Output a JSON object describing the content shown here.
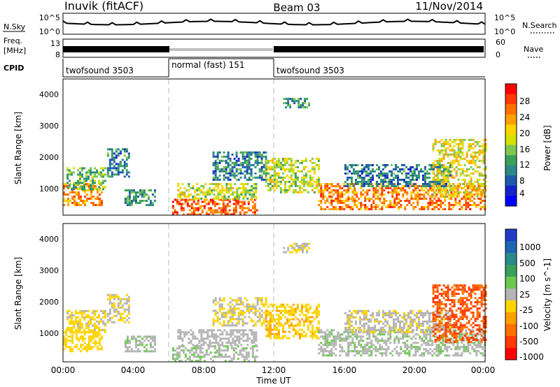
{
  "header": {
    "station": "Inuvik (fitACF)",
    "beam": "Beam 03",
    "date": "11/Nov/2014"
  },
  "strips": {
    "nsky_label": "N.Sky",
    "nsky_ticks": [
      "10^5",
      "10^0"
    ],
    "nsearch_label": "N.Search",
    "nsearch_ticks": [
      "10^5",
      "10^0"
    ],
    "freq_label_1": "Freq.",
    "freq_label_2": "[MHz]",
    "freq_ticks": [
      "13",
      "8"
    ],
    "nave_label": "Nave",
    "nave_ticks": [
      "60",
      "0"
    ],
    "cpid_label": "CPID",
    "cpid_segments": [
      {
        "label": "twofsound 3503",
        "start": 0,
        "end": 6
      },
      {
        "label": "normal (fast) 151",
        "start": 6,
        "end": 12
      },
      {
        "label": "twofsound 3503",
        "start": 12,
        "end": 24
      }
    ]
  },
  "power_colorbar": {
    "label": "Power [dB]",
    "ticks": [
      "28",
      "24",
      "20",
      "16",
      "12",
      "8",
      "4"
    ],
    "colors": [
      "#ff0000",
      "#ff3a00",
      "#ff7000",
      "#ffa000",
      "#ffd400",
      "#d6e000",
      "#7ec850",
      "#3aa05a",
      "#2a8a8a",
      "#1e5aaa",
      "#1424c8",
      "#0000ff"
    ]
  },
  "velocity_colorbar": {
    "label": "Velocity [m s^-1]",
    "ticks": [
      "1000",
      "500",
      "100",
      "25",
      "-25",
      "-100",
      "-500",
      "-1000"
    ],
    "colors": [
      "#1e3cc8",
      "#1e64b4",
      "#2a8a8a",
      "#3aa05a",
      "#6cc850",
      "#b4b4b4",
      "#ffd400",
      "#ffa000",
      "#ff7000",
      "#ff3a00",
      "#ff0000"
    ]
  },
  "chart_data": [
    {
      "type": "heatmap",
      "ylabel": "Slant Range [km]",
      "yticks": [
        "4000",
        "3000",
        "2000",
        "1000"
      ],
      "ylim": [
        180,
        4500
      ],
      "quantity": "Power [dB]",
      "regions": [
        {
          "t0": 0.0,
          "t1": 2.2,
          "r0": 500,
          "r1": 1200,
          "v": 22
        },
        {
          "t0": 0.2,
          "t1": 2.4,
          "r0": 1000,
          "r1": 1700,
          "v": 12
        },
        {
          "t0": 2.5,
          "t1": 3.8,
          "r0": 1400,
          "r1": 2300,
          "v": 8
        },
        {
          "t0": 3.5,
          "t1": 5.2,
          "r0": 500,
          "r1": 1000,
          "v": 10
        },
        {
          "t0": 6.2,
          "t1": 11.0,
          "r0": 200,
          "r1": 700,
          "v": 26
        },
        {
          "t0": 6.5,
          "t1": 11.0,
          "r0": 700,
          "r1": 1200,
          "v": 16
        },
        {
          "t0": 8.5,
          "t1": 11.5,
          "r0": 1300,
          "r1": 2200,
          "v": 8
        },
        {
          "t0": 11.5,
          "t1": 14.5,
          "r0": 900,
          "r1": 2000,
          "v": 16
        },
        {
          "t0": 12.5,
          "t1": 14.0,
          "r0": 3600,
          "r1": 3900,
          "v": 10
        },
        {
          "t0": 14.5,
          "t1": 24.0,
          "r0": 400,
          "r1": 1200,
          "v": 24
        },
        {
          "t0": 16.0,
          "t1": 22.0,
          "r0": 1100,
          "r1": 1800,
          "v": 8
        },
        {
          "t0": 21.0,
          "t1": 24.0,
          "r0": 800,
          "r1": 2600,
          "v": 18
        }
      ]
    },
    {
      "type": "heatmap",
      "ylabel": "Slant Range [km]",
      "yticks": [
        "4000",
        "3000",
        "2000",
        "1000"
      ],
      "ylim": [
        180,
        4500
      ],
      "xlabel": "Time UT",
      "xticks": [
        "00:00",
        "04:00",
        "08:00",
        "12:00",
        "16:00",
        "20:00",
        "00:00"
      ],
      "xlim": [
        0,
        24
      ],
      "quantity": "Velocity [m s^-1]",
      "regions": [
        {
          "t0": 0.0,
          "t1": 2.2,
          "r0": 500,
          "r1": 1200,
          "v": -200
        },
        {
          "t0": 0.2,
          "t1": 2.4,
          "r0": 1100,
          "r1": 1800,
          "v": -150
        },
        {
          "t0": 2.5,
          "t1": 3.8,
          "r0": 1400,
          "r1": 2300,
          "v": -100
        },
        {
          "t0": 3.5,
          "t1": 5.2,
          "r0": 500,
          "r1": 1000,
          "v": 50
        },
        {
          "t0": 6.2,
          "t1": 11.0,
          "r0": 200,
          "r1": 700,
          "v": 60
        },
        {
          "t0": 6.5,
          "t1": 11.0,
          "r0": 700,
          "r1": 1200,
          "v": 0
        },
        {
          "t0": 8.5,
          "t1": 11.5,
          "r0": 1300,
          "r1": 2200,
          "v": -120
        },
        {
          "t0": 11.5,
          "t1": 14.5,
          "r0": 900,
          "r1": 2000,
          "v": -250
        },
        {
          "t0": 12.5,
          "t1": 14.0,
          "r0": 3600,
          "r1": 3900,
          "v": -80
        },
        {
          "t0": 14.5,
          "t1": 24.0,
          "r0": 400,
          "r1": 1200,
          "v": 60
        },
        {
          "t0": 16.0,
          "t1": 22.0,
          "r0": 1100,
          "r1": 1800,
          "v": -50
        },
        {
          "t0": 21.0,
          "t1": 24.0,
          "r0": 800,
          "r1": 2600,
          "v": -700
        }
      ]
    }
  ]
}
